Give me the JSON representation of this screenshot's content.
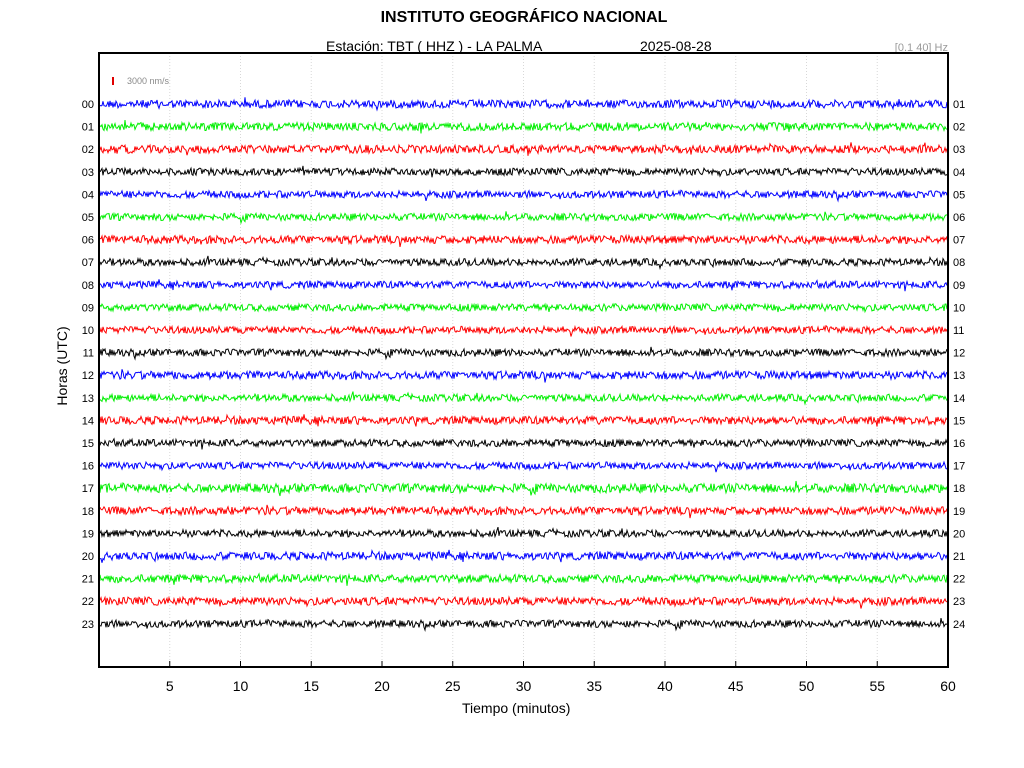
{
  "header": {
    "title": "INSTITUTO GEOGRÁFICO NACIONAL",
    "station": "Estación:  TBT ( HHZ ) - LA PALMA",
    "date": "2025-08-28",
    "filter": "[0.1 40] Hz",
    "scale_label": "3000 nm/s"
  },
  "chart_data": {
    "type": "line",
    "chart_kind": "helicorder (seismogram drum)",
    "xlabel": "Tiempo (minutos)",
    "ylabel": "Horas (UTC)",
    "xlim": [
      0,
      60
    ],
    "x_ticks": [
      5,
      10,
      15,
      20,
      25,
      30,
      35,
      40,
      45,
      50,
      55,
      60
    ],
    "grid": "vertical dotted lines at every 5 minutes",
    "scale_bar_amplitude": "3000 nm/s",
    "trace_colors": [
      "#0000ff",
      "#00ee00",
      "#ff0000",
      "#000000"
    ],
    "left_hour_labels": [
      "00",
      "01",
      "02",
      "03",
      "04",
      "05",
      "06",
      "07",
      "08",
      "09",
      "10",
      "11",
      "12",
      "13",
      "14",
      "15",
      "16",
      "17",
      "18",
      "19",
      "20",
      "21",
      "22",
      "23"
    ],
    "right_hour_labels": [
      "01",
      "02",
      "03",
      "04",
      "05",
      "06",
      "07",
      "08",
      "09",
      "10",
      "11",
      "12",
      "13",
      "14",
      "15",
      "16",
      "17",
      "18",
      "19",
      "20",
      "21",
      "22",
      "23",
      "24"
    ],
    "series": [
      {
        "start": "00",
        "end": "01",
        "color": "#0000ff",
        "noise_amplitude": 0.45
      },
      {
        "start": "01",
        "end": "02",
        "color": "#00ee00",
        "noise_amplitude": 0.45
      },
      {
        "start": "02",
        "end": "03",
        "color": "#ff0000",
        "noise_amplitude": 0.45
      },
      {
        "start": "03",
        "end": "04",
        "color": "#000000",
        "noise_amplitude": 0.4
      },
      {
        "start": "04",
        "end": "05",
        "color": "#0000ff",
        "noise_amplitude": 0.4
      },
      {
        "start": "05",
        "end": "06",
        "color": "#00ee00",
        "noise_amplitude": 0.4
      },
      {
        "start": "06",
        "end": "07",
        "color": "#ff0000",
        "noise_amplitude": 0.45
      },
      {
        "start": "07",
        "end": "08",
        "color": "#000000",
        "noise_amplitude": 0.4
      },
      {
        "start": "08",
        "end": "09",
        "color": "#0000ff",
        "noise_amplitude": 0.4
      },
      {
        "start": "09",
        "end": "10",
        "color": "#00ee00",
        "noise_amplitude": 0.4
      },
      {
        "start": "10",
        "end": "11",
        "color": "#ff0000",
        "noise_amplitude": 0.4
      },
      {
        "start": "11",
        "end": "12",
        "color": "#000000",
        "noise_amplitude": 0.4
      },
      {
        "start": "12",
        "end": "13",
        "color": "#0000ff",
        "noise_amplitude": 0.45
      },
      {
        "start": "13",
        "end": "14",
        "color": "#00ee00",
        "noise_amplitude": 0.4
      },
      {
        "start": "14",
        "end": "15",
        "color": "#ff0000",
        "noise_amplitude": 0.45
      },
      {
        "start": "15",
        "end": "16",
        "color": "#000000",
        "noise_amplitude": 0.4
      },
      {
        "start": "16",
        "end": "17",
        "color": "#0000ff",
        "noise_amplitude": 0.4
      },
      {
        "start": "17",
        "end": "18",
        "color": "#00ee00",
        "noise_amplitude": 0.5
      },
      {
        "start": "18",
        "end": "19",
        "color": "#ff0000",
        "noise_amplitude": 0.45
      },
      {
        "start": "19",
        "end": "20",
        "color": "#000000",
        "noise_amplitude": 0.4
      },
      {
        "start": "20",
        "end": "21",
        "color": "#0000ff",
        "noise_amplitude": 0.45
      },
      {
        "start": "21",
        "end": "22",
        "color": "#00ee00",
        "noise_amplitude": 0.45
      },
      {
        "start": "22",
        "end": "23",
        "color": "#ff0000",
        "noise_amplitude": 0.45
      },
      {
        "start": "23",
        "end": "24",
        "color": "#000000",
        "noise_amplitude": 0.4
      }
    ]
  }
}
